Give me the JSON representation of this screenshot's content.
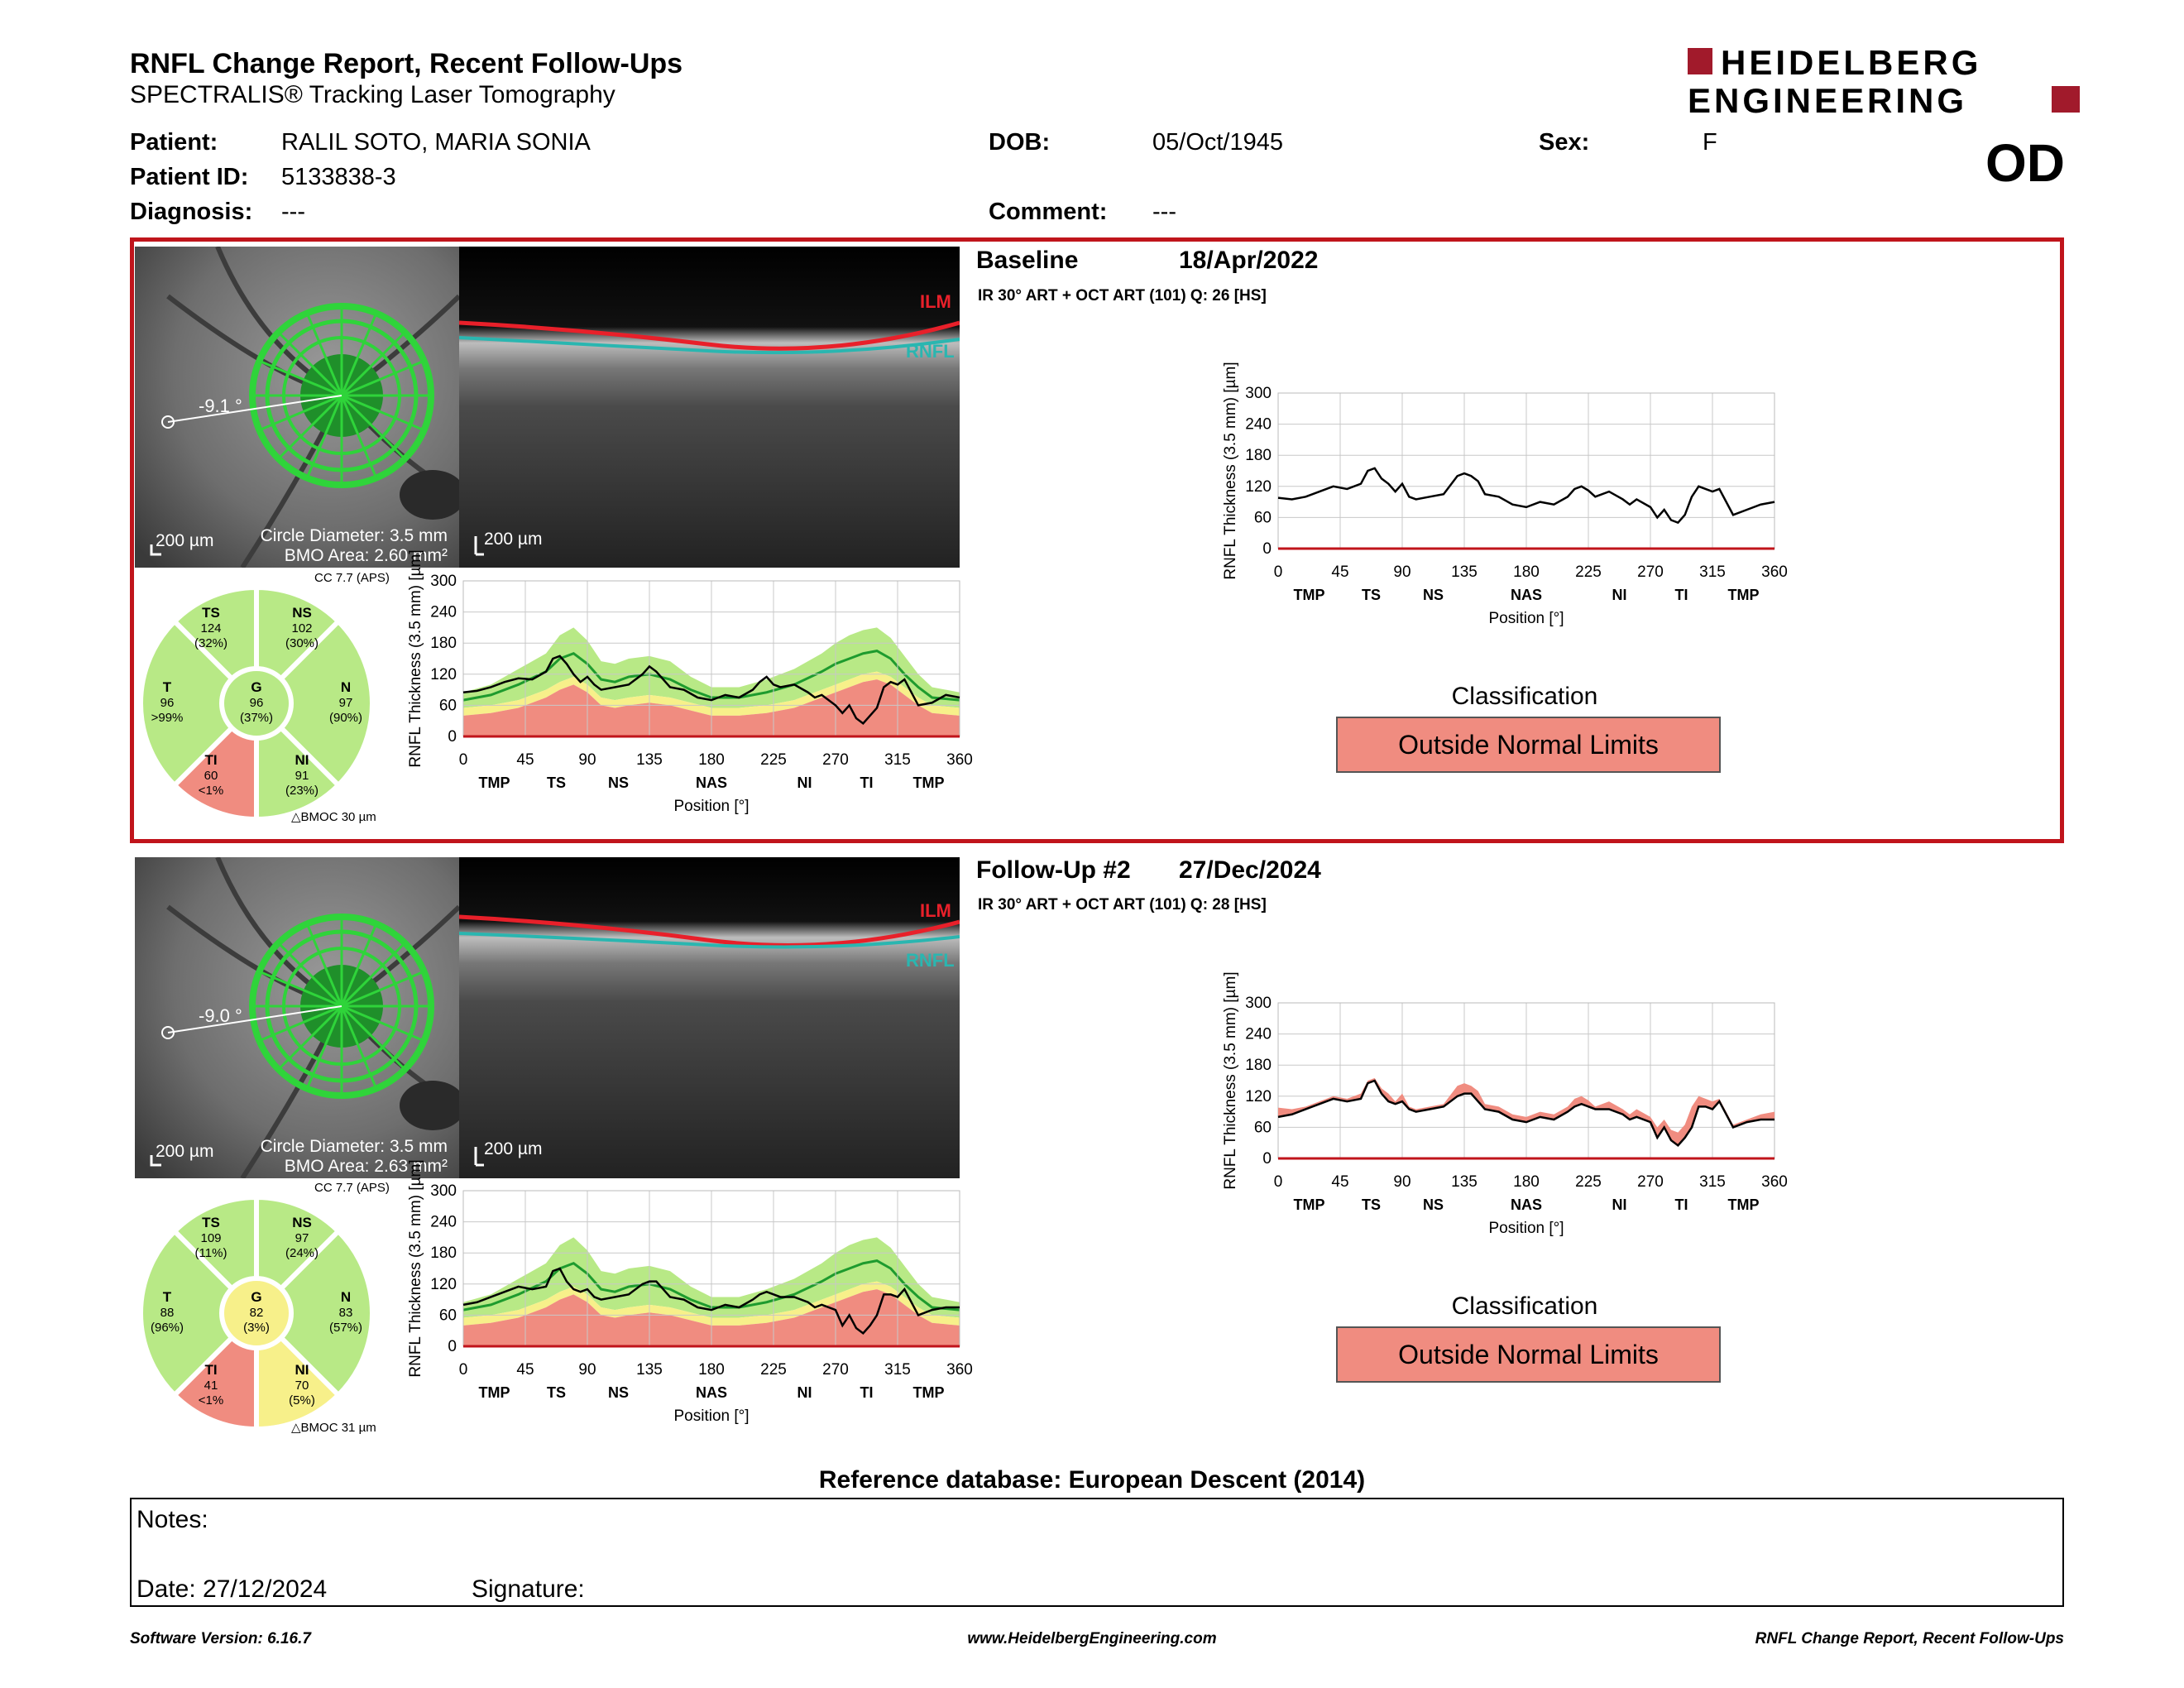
{
  "header": {
    "title": "RNFL Change Report, Recent Follow-Ups",
    "subtitle": "SPECTRALIS® Tracking Laser Tomography",
    "logo_line1": "HEIDELBERG",
    "logo_line2": "ENGINEERING",
    "eye": "OD"
  },
  "patient": {
    "patient_label": "Patient:",
    "patient_value": "RALIL SOTO, MARIA SONIA",
    "id_label": "Patient ID:",
    "id_value": "5133838-3",
    "diagnosis_label": "Diagnosis:",
    "diagnosis_value": "---",
    "dob_label": "DOB:",
    "dob_value": "05/Oct/1945",
    "comment_label": "Comment:",
    "comment_value": "---",
    "sex_label": "Sex:",
    "sex_value": "F"
  },
  "sections": [
    {
      "title": "Baseline",
      "date": "18/Apr/2022",
      "scan_info": "IR 30° ART + OCT ART (101) Q: 26 [HS]",
      "angle": "-9.1 °",
      "scale_fundus": "200 µm",
      "scale_bscan": "200 µm",
      "circle_diameter": "Circle Diameter: 3.5 mm",
      "bmo_area": "BMO Area: 2.60 mm²",
      "cc": "CC 7.7 (APS)",
      "bmoc": "BMOC 30 µm",
      "ilm": "ILM",
      "rnfl": "RNFL",
      "sectors": {
        "TS": {
          "label": "TS",
          "value": "124",
          "pct": "(32%)",
          "color": "#b8e986"
        },
        "NS": {
          "label": "NS",
          "value": "102",
          "pct": "(30%)",
          "color": "#b8e986"
        },
        "T": {
          "label": "T",
          "value": "96",
          "pct": ">99%",
          "color": "#b8e986"
        },
        "G": {
          "label": "G",
          "value": "96",
          "pct": "(37%)",
          "color": "#b8e986"
        },
        "N": {
          "label": "N",
          "value": "97",
          "pct": "(90%)",
          "color": "#b8e986"
        },
        "TI": {
          "label": "TI",
          "value": "60",
          "pct": "<1%",
          "color": "#f08c80"
        },
        "NI": {
          "label": "NI",
          "value": "91",
          "pct": "(23%)",
          "color": "#b8e986"
        }
      },
      "classification_label": "Classification",
      "classification": "Outside Normal Limits",
      "classification_color": "#f08c80"
    },
    {
      "title": "Follow-Up #2",
      "date": "27/Dec/2024",
      "scan_info": "IR 30° ART + OCT ART (101) Q: 28 [HS]",
      "angle": "-9.0 °",
      "scale_fundus": "200 µm",
      "scale_bscan": "200 µm",
      "circle_diameter": "Circle Diameter: 3.5 mm",
      "bmo_area": "BMO Area: 2.63 mm²",
      "cc": "CC 7.7 (APS)",
      "bmoc": "BMOC 31 µm",
      "ilm": "ILM",
      "rnfl": "RNFL",
      "sectors": {
        "TS": {
          "label": "TS",
          "value": "109",
          "pct": "(11%)",
          "color": "#b8e986"
        },
        "NS": {
          "label": "NS",
          "value": "97",
          "pct": "(24%)",
          "color": "#b8e986"
        },
        "T": {
          "label": "T",
          "value": "88",
          "pct": "(96%)",
          "color": "#b8e986"
        },
        "G": {
          "label": "G",
          "value": "82",
          "pct": "(3%)",
          "color": "#f7f08a"
        },
        "N": {
          "label": "N",
          "value": "83",
          "pct": "(57%)",
          "color": "#b8e986"
        },
        "TI": {
          "label": "TI",
          "value": "41",
          "pct": "<1%",
          "color": "#f08c80"
        },
        "NI": {
          "label": "NI",
          "value": "70",
          "pct": "(5%)",
          "color": "#f7f08a"
        }
      },
      "classification_label": "Classification",
      "classification": "Outside Normal Limits",
      "classification_color": "#f08c80"
    }
  ],
  "chart_data": [
    {
      "type": "line",
      "title": "",
      "ylabel": "RNFL Thickness (3.5 mm) [µm]",
      "xlabel": "Position [°]",
      "xlim": [
        0,
        360
      ],
      "ylim": [
        0,
        300
      ],
      "x_ticks": [
        "0",
        "45",
        "90",
        "135",
        "180",
        "225",
        "270",
        "315",
        "360"
      ],
      "y_ticks": [
        "0",
        "60",
        "120",
        "180",
        "240",
        "300"
      ],
      "sector_labels": [
        "TMP",
        "TS",
        "NS",
        "NAS",
        "NI",
        "TI",
        "TMP"
      ],
      "series": [
        {
          "x": [
            0,
            10,
            20,
            30,
            40,
            50,
            60,
            65,
            70,
            75,
            80,
            85,
            90,
            95,
            100,
            110,
            120,
            130,
            135,
            140,
            145,
            150,
            160,
            170,
            180,
            190,
            200,
            210,
            215,
            220,
            225,
            230,
            240,
            250,
            255,
            260,
            270,
            275,
            280,
            285,
            290,
            295,
            300,
            305,
            310,
            315,
            320,
            330,
            340,
            350,
            360
          ],
          "y": [
            98,
            95,
            100,
            110,
            120,
            115,
            125,
            150,
            155,
            135,
            125,
            110,
            125,
            100,
            95,
            100,
            105,
            140,
            145,
            140,
            130,
            105,
            100,
            85,
            80,
            90,
            85,
            100,
            115,
            120,
            112,
            100,
            110,
            95,
            85,
            95,
            80,
            60,
            75,
            55,
            50,
            65,
            100,
            120,
            115,
            110,
            115,
            65,
            75,
            85,
            90
          ]
        }
      ]
    },
    {
      "type": "area",
      "title": "",
      "ylabel": "RNFL Thickness (3.5 mm) [µm]",
      "xlabel": "Position [°]",
      "xlim": [
        0,
        360
      ],
      "ylim": [
        0,
        300
      ],
      "x_ticks": [
        "0",
        "45",
        "90",
        "135",
        "180",
        "225",
        "270",
        "315",
        "360"
      ],
      "y_ticks": [
        "0",
        "60",
        "120",
        "180",
        "240",
        "300"
      ],
      "sector_labels": [
        "TMP",
        "TS",
        "NS",
        "NAS",
        "NI",
        "TI",
        "TMP"
      ],
      "series": [
        {
          "x": [
            0,
            10,
            20,
            30,
            40,
            50,
            60,
            65,
            70,
            75,
            80,
            85,
            90,
            95,
            100,
            110,
            120,
            130,
            135,
            140,
            145,
            150,
            160,
            170,
            180,
            190,
            200,
            210,
            215,
            220,
            225,
            230,
            240,
            250,
            255,
            260,
            270,
            275,
            280,
            285,
            290,
            295,
            300,
            305,
            310,
            315,
            320,
            330,
            340,
            350,
            360
          ],
          "y": [
            98,
            95,
            100,
            110,
            120,
            115,
            125,
            150,
            155,
            135,
            125,
            110,
            125,
            100,
            95,
            100,
            105,
            140,
            145,
            140,
            130,
            105,
            100,
            85,
            80,
            90,
            85,
            100,
            115,
            120,
            112,
            100,
            110,
            95,
            85,
            95,
            80,
            60,
            75,
            55,
            50,
            65,
            100,
            120,
            115,
            110,
            115,
            65,
            75,
            85,
            90
          ]
        },
        {
          "x": [
            0,
            10,
            20,
            30,
            40,
            50,
            60,
            65,
            70,
            75,
            80,
            85,
            90,
            95,
            100,
            110,
            120,
            130,
            135,
            140,
            145,
            150,
            160,
            170,
            180,
            190,
            200,
            210,
            215,
            220,
            225,
            230,
            240,
            250,
            255,
            260,
            270,
            275,
            280,
            285,
            290,
            295,
            300,
            305,
            310,
            315,
            320,
            330,
            340,
            350,
            360
          ],
          "y": [
            80,
            85,
            95,
            105,
            115,
            110,
            115,
            145,
            150,
            125,
            110,
            105,
            110,
            95,
            90,
            95,
            100,
            120,
            125,
            125,
            110,
            95,
            90,
            75,
            70,
            80,
            75,
            90,
            100,
            105,
            100,
            95,
            95,
            85,
            75,
            80,
            70,
            40,
            60,
            35,
            25,
            40,
            60,
            100,
            100,
            95,
            110,
            60,
            70,
            75,
            75
          ]
        }
      ]
    },
    {
      "type": "line",
      "title": "",
      "ylabel": "RNFL Thickness (3.5 mm) [µm]",
      "xlabel": "Position [°]",
      "xlim": [
        0,
        360
      ],
      "ylim": [
        0,
        300
      ],
      "x_ticks": [
        "0",
        "45",
        "90",
        "135",
        "180",
        "225",
        "270",
        "315",
        "360"
      ],
      "y_ticks": [
        "0",
        "60",
        "120",
        "180",
        "240",
        "300"
      ],
      "sector_labels": [
        "TMP",
        "TS",
        "NS",
        "NAS",
        "NI",
        "TI",
        "TMP"
      ],
      "normative": {
        "x": [
          0,
          20,
          40,
          60,
          70,
          80,
          90,
          100,
          110,
          120,
          135,
          150,
          165,
          180,
          200,
          220,
          240,
          260,
          270,
          280,
          290,
          300,
          310,
          320,
          330,
          340,
          360
        ],
        "p1": [
          40,
          45,
          55,
          75,
          90,
          100,
          85,
          60,
          55,
          60,
          65,
          60,
          50,
          40,
          40,
          45,
          55,
          75,
          85,
          95,
          105,
          110,
          100,
          80,
          60,
          45,
          40
        ],
        "p5": [
          55,
          60,
          70,
          90,
          105,
          115,
          100,
          75,
          70,
          75,
          80,
          75,
          65,
          55,
          55,
          60,
          70,
          90,
          100,
          110,
          120,
          125,
          115,
          95,
          75,
          60,
          55
        ],
        "mean": [
          70,
          80,
          100,
          125,
          150,
          160,
          140,
          110,
          105,
          115,
          120,
          110,
          90,
          75,
          75,
          85,
          100,
          125,
          140,
          150,
          160,
          165,
          150,
          120,
          95,
          75,
          70
        ],
        "p95": [
          85,
          100,
          130,
          160,
          195,
          210,
          185,
          145,
          140,
          150,
          155,
          145,
          115,
          95,
          95,
          110,
          130,
          160,
          180,
          195,
          205,
          210,
          190,
          155,
          120,
          95,
          85
        ]
      },
      "series": [
        {
          "x": [
            0,
            10,
            20,
            30,
            40,
            50,
            60,
            65,
            70,
            75,
            80,
            85,
            90,
            95,
            100,
            110,
            120,
            130,
            135,
            140,
            145,
            150,
            160,
            170,
            180,
            190,
            200,
            210,
            215,
            220,
            225,
            230,
            240,
            250,
            255,
            260,
            270,
            275,
            280,
            285,
            290,
            295,
            300,
            305,
            310,
            315,
            320,
            330,
            340,
            350,
            360
          ],
          "y": [
            85,
            88,
            95,
            105,
            112,
            110,
            125,
            150,
            155,
            140,
            120,
            105,
            115,
            100,
            90,
            95,
            100,
            120,
            135,
            125,
            110,
            95,
            90,
            75,
            70,
            80,
            75,
            90,
            105,
            115,
            100,
            95,
            100,
            85,
            75,
            80,
            60,
            45,
            60,
            35,
            25,
            40,
            55,
            95,
            105,
            100,
            110,
            60,
            65,
            80,
            75
          ]
        }
      ]
    },
    {
      "type": "line",
      "title": "",
      "ylabel": "RNFL Thickness (3.5 mm) [µm]",
      "xlabel": "Position [°]",
      "xlim": [
        0,
        360
      ],
      "ylim": [
        0,
        300
      ],
      "x_ticks": [
        "0",
        "45",
        "90",
        "135",
        "180",
        "225",
        "270",
        "315",
        "360"
      ],
      "y_ticks": [
        "0",
        "60",
        "120",
        "180",
        "240",
        "300"
      ],
      "sector_labels": [
        "TMP",
        "TS",
        "NS",
        "NAS",
        "NI",
        "TI",
        "TMP"
      ],
      "normative": {
        "x": [
          0,
          20,
          40,
          60,
          70,
          80,
          90,
          100,
          110,
          120,
          135,
          150,
          165,
          180,
          200,
          220,
          240,
          260,
          270,
          280,
          290,
          300,
          310,
          320,
          330,
          340,
          360
        ],
        "p1": [
          40,
          45,
          55,
          75,
          90,
          100,
          85,
          60,
          55,
          60,
          65,
          60,
          50,
          40,
          40,
          45,
          55,
          75,
          85,
          95,
          105,
          110,
          100,
          80,
          60,
          45,
          40
        ],
        "p5": [
          55,
          60,
          70,
          90,
          105,
          115,
          100,
          75,
          70,
          75,
          80,
          75,
          65,
          55,
          55,
          60,
          70,
          90,
          100,
          110,
          120,
          125,
          115,
          95,
          75,
          60,
          55
        ],
        "mean": [
          70,
          80,
          100,
          125,
          150,
          160,
          140,
          110,
          105,
          115,
          120,
          110,
          90,
          75,
          75,
          85,
          100,
          125,
          140,
          150,
          160,
          165,
          150,
          120,
          95,
          75,
          70
        ],
        "p95": [
          85,
          100,
          130,
          160,
          195,
          210,
          185,
          145,
          140,
          150,
          155,
          145,
          115,
          95,
          95,
          110,
          130,
          160,
          180,
          195,
          205,
          210,
          190,
          155,
          120,
          95,
          85
        ]
      },
      "series": [
        {
          "x": [
            0,
            10,
            20,
            30,
            40,
            50,
            60,
            65,
            70,
            75,
            80,
            85,
            90,
            95,
            100,
            110,
            120,
            130,
            135,
            140,
            145,
            150,
            160,
            170,
            180,
            190,
            200,
            210,
            215,
            220,
            225,
            230,
            240,
            250,
            255,
            260,
            270,
            275,
            280,
            285,
            290,
            295,
            300,
            305,
            310,
            315,
            320,
            330,
            340,
            350,
            360
          ],
          "y": [
            80,
            85,
            95,
            105,
            115,
            110,
            115,
            145,
            150,
            125,
            110,
            105,
            110,
            95,
            90,
            95,
            100,
            120,
            125,
            125,
            110,
            95,
            90,
            75,
            70,
            80,
            75,
            90,
            100,
            105,
            100,
            95,
            95,
            85,
            75,
            80,
            70,
            40,
            60,
            35,
            25,
            40,
            60,
            100,
            100,
            95,
            110,
            60,
            70,
            75,
            75
          ]
        }
      ]
    }
  ],
  "reference_db": "Reference database: European Descent (2014)",
  "notes": {
    "notes_label": "Notes:",
    "date_label": "Date: 27/12/2024",
    "signature_label": "Signature:"
  },
  "footer": {
    "software": "Software Version: 6.16.7",
    "website": "www.HeidelbergEngineering.com",
    "report": "RNFL Change Report, Recent Follow-Ups"
  },
  "colors": {
    "frame_red": "#c0141b",
    "within_green": "#b8e986",
    "borderline_yellow": "#f7f08a",
    "outside_red": "#f08c80",
    "logo_red": "#a11a2b"
  }
}
